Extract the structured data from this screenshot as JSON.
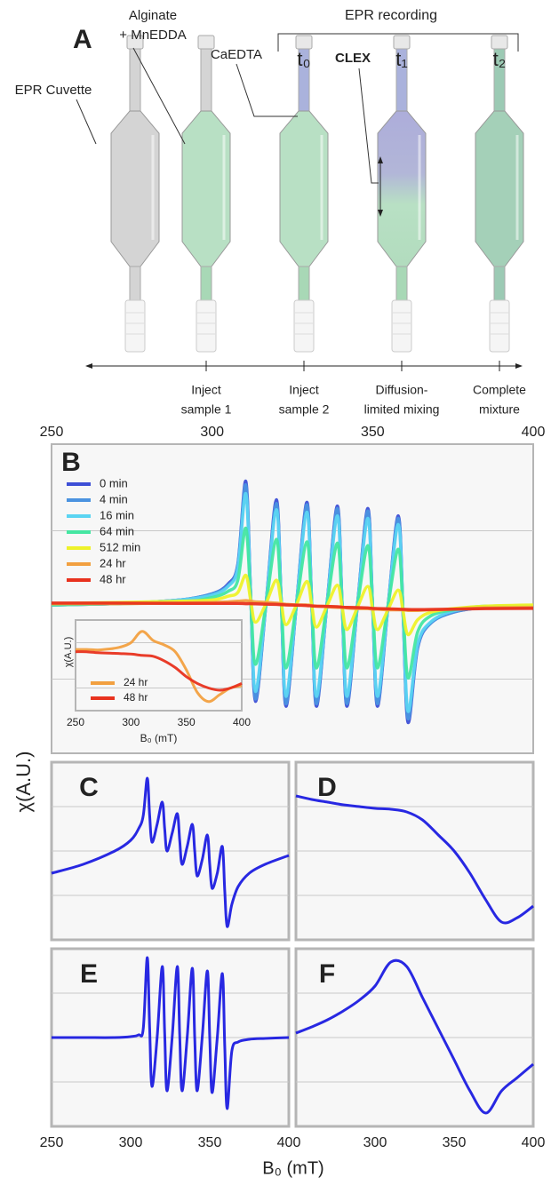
{
  "diagram": {
    "panel": "A",
    "cuvette_label": "EPR Cuvette",
    "sample_label": [
      "Alginate",
      "+ MnEDDA"
    ],
    "second_sample_label": "CaEDTA",
    "method_label": "CLEX",
    "recording_label": "EPR recording",
    "time_points": [
      "t₀",
      "t₁",
      "t₂"
    ],
    "steps": [
      [
        "Inject",
        "sample 1"
      ],
      [
        "Inject",
        "sample 2"
      ],
      [
        "Diffusion-",
        "limited mixing"
      ],
      [
        "Complete",
        "mixture"
      ]
    ]
  },
  "figure_labels": {
    "y": "χ(A.U.)",
    "x": "B₀ (mT)"
  },
  "chart_data": [
    {
      "type": "line",
      "panel": "B",
      "xlim": [
        250,
        400
      ],
      "xticks": [
        250,
        300,
        350,
        400
      ],
      "ylim": [
        -1.2,
        1.3
      ],
      "yticks": [
        -0.6,
        0.6
      ],
      "grid": true,
      "legend": "upper left",
      "x": [
        250,
        270,
        290,
        300,
        305,
        308,
        310.5,
        312,
        313.5,
        316.75,
        320,
        321.5,
        323,
        326.25,
        329.5,
        331,
        332.5,
        335.75,
        339,
        340.5,
        342,
        345.25,
        348.5,
        350,
        351.5,
        354.75,
        358,
        359.5,
        361,
        364,
        368,
        375,
        385,
        400
      ],
      "series": [
        {
          "name": "0 min",
          "color": "#3d4fd6",
          "values": [
            0,
            0.01,
            0.04,
            0.09,
            0.17,
            0.33,
            1.0,
            0.1,
            -0.78,
            0,
            0.85,
            0.05,
            -0.82,
            0,
            0.83,
            0.03,
            -0.82,
            0,
            0.8,
            0,
            -0.82,
            0,
            0.78,
            -0.02,
            -0.82,
            -0.02,
            0.72,
            -0.1,
            -0.95,
            -0.35,
            -0.15,
            -0.06,
            -0.02,
            -0.01
          ]
        },
        {
          "name": "4 min",
          "color": "#4b93e0",
          "values": [
            0,
            0.01,
            0.04,
            0.09,
            0.16,
            0.32,
            0.97,
            0.1,
            -0.76,
            0,
            0.82,
            0.05,
            -0.8,
            0,
            0.81,
            0.03,
            -0.8,
            0,
            0.78,
            0,
            -0.8,
            0,
            0.76,
            -0.02,
            -0.8,
            -0.02,
            0.7,
            -0.1,
            -0.92,
            -0.34,
            -0.15,
            -0.06,
            -0.02,
            -0.01
          ]
        },
        {
          "name": "16 min",
          "color": "#5ad4f2",
          "values": [
            0,
            0.01,
            0.04,
            0.08,
            0.15,
            0.3,
            0.9,
            0.09,
            -0.7,
            0,
            0.77,
            0.05,
            -0.74,
            0,
            0.75,
            0.03,
            -0.74,
            0,
            0.72,
            0,
            -0.74,
            0,
            0.7,
            -0.02,
            -0.74,
            -0.02,
            0.65,
            -0.09,
            -0.86,
            -0.32,
            -0.14,
            -0.05,
            -0.02,
            -0.01
          ]
        },
        {
          "name": "64 min",
          "color": "#45e6a2",
          "values": [
            0,
            0.01,
            0.02,
            0.06,
            0.11,
            0.2,
            0.62,
            0.06,
            -0.48,
            0,
            0.53,
            0.03,
            -0.51,
            0,
            0.51,
            0.02,
            -0.51,
            0,
            0.5,
            0,
            -0.51,
            0,
            0.48,
            -0.01,
            -0.51,
            -0.01,
            0.45,
            -0.06,
            -0.59,
            -0.22,
            -0.09,
            -0.04,
            -0.01,
            -0.01
          ]
        },
        {
          "name": "512 min",
          "color": "#eef22a",
          "values": [
            0.01,
            0.02,
            0.03,
            0.04,
            0.07,
            0.1,
            0.24,
            0.04,
            -0.14,
            0.01,
            0.2,
            0.02,
            -0.16,
            0,
            0.19,
            0,
            -0.18,
            -0.01,
            0.16,
            -0.02,
            -0.2,
            -0.02,
            0.15,
            -0.04,
            -0.2,
            -0.04,
            0.12,
            -0.06,
            -0.24,
            -0.12,
            -0.06,
            -0.03,
            -0.01,
            0
          ]
        },
        {
          "name": "24 hr",
          "color": "#f2a040",
          "values": [
            0.01,
            0.01,
            0.015,
            0.02,
            0.025,
            0.03,
            0.035,
            0.03,
            0.025,
            0.02,
            0.015,
            0.01,
            0.005,
            0,
            0,
            -0.005,
            -0.01,
            -0.015,
            -0.02,
            -0.02,
            -0.025,
            -0.03,
            -0.03,
            -0.035,
            -0.035,
            -0.04,
            -0.04,
            -0.04,
            -0.045,
            -0.045,
            -0.04,
            -0.035,
            -0.025,
            -0.02
          ]
        },
        {
          "name": "48 hr",
          "color": "#e8321e",
          "values": [
            0.015,
            0.015,
            0.012,
            0.012,
            0.012,
            0.012,
            0.01,
            0.01,
            0.008,
            0.006,
            0.004,
            0.002,
            0,
            -0.002,
            -0.005,
            -0.008,
            -0.01,
            -0.012,
            -0.015,
            -0.018,
            -0.02,
            -0.022,
            -0.025,
            -0.028,
            -0.03,
            -0.032,
            -0.035,
            -0.036,
            -0.037,
            -0.038,
            -0.037,
            -0.035,
            -0.03,
            -0.028
          ]
        }
      ]
    },
    {
      "type": "line",
      "xlabel": "B₀ (mT)",
      "ylabel": "χ(A.U.)",
      "xlim": [
        250,
        400
      ],
      "xticks": [
        250,
        300,
        350,
        400
      ],
      "ylim": [
        -1,
        1
      ],
      "yticks": [
        -0.5,
        0.5
      ],
      "grid": true,
      "legend": "lower left",
      "x": [
        250,
        260,
        270,
        280,
        290,
        300,
        310,
        320,
        330,
        340,
        350,
        360,
        370,
        380,
        390,
        400
      ],
      "series": [
        {
          "name": "24 hr",
          "color": "#f2a040",
          "values": [
            0.35,
            0.35,
            0.34,
            0.36,
            0.4,
            0.5,
            0.75,
            0.55,
            0.45,
            0.3,
            -0.1,
            -0.6,
            -0.8,
            -0.65,
            -0.5,
            -0.45
          ]
        },
        {
          "name": "48 hr",
          "color": "#e8321e",
          "values": [
            0.3,
            0.3,
            0.28,
            0.27,
            0.26,
            0.25,
            0.22,
            0.2,
            0.1,
            -0.05,
            -0.25,
            -0.4,
            -0.5,
            -0.55,
            -0.5,
            -0.4
          ]
        }
      ]
    },
    {
      "type": "line",
      "panel": "C",
      "xlim": [
        250,
        400
      ],
      "ylim": [
        -1,
        1
      ],
      "yticks": [
        -0.5,
        0,
        0.5
      ],
      "grid": true,
      "x": [
        250,
        270,
        290,
        300,
        305,
        308,
        310.5,
        312,
        313.5,
        316.75,
        320,
        321.5,
        323,
        326.25,
        329.5,
        331,
        332.5,
        335.75,
        339,
        340.5,
        342,
        345.25,
        348.5,
        350,
        351.5,
        354.75,
        358,
        359.5,
        361,
        364,
        368,
        375,
        385,
        400
      ],
      "series": [
        {
          "color": "#1c1ce0",
          "values": [
            -0.25,
            -0.15,
            0,
            0.12,
            0.25,
            0.4,
            0.82,
            0.4,
            0.1,
            0.3,
            0.55,
            0.25,
            0,
            0.2,
            0.42,
            0.12,
            -0.15,
            0.05,
            0.3,
            0,
            -0.28,
            -0.1,
            0.18,
            -0.15,
            -0.42,
            -0.25,
            0.05,
            -0.45,
            -0.85,
            -0.6,
            -0.4,
            -0.25,
            -0.15,
            -0.05
          ]
        }
      ]
    },
    {
      "type": "line",
      "panel": "D",
      "xlim": [
        250,
        400
      ],
      "ylim": [
        -1,
        1
      ],
      "yticks": [
        -0.5,
        0,
        0.5
      ],
      "grid": true,
      "x": [
        250,
        260,
        270,
        280,
        290,
        300,
        310,
        320,
        330,
        340,
        350,
        360,
        370,
        380,
        390,
        400
      ],
      "series": [
        {
          "color": "#1c1ce0",
          "values": [
            0.62,
            0.58,
            0.55,
            0.52,
            0.5,
            0.48,
            0.47,
            0.44,
            0.35,
            0.18,
            0,
            -0.25,
            -0.55,
            -0.8,
            -0.75,
            -0.62
          ]
        }
      ]
    },
    {
      "type": "line",
      "panel": "E",
      "xlim": [
        250,
        400
      ],
      "xticks": [
        250,
        300,
        350,
        400
      ],
      "ylim": [
        -1,
        1
      ],
      "yticks": [
        -0.5,
        0,
        0.5
      ],
      "grid": true,
      "x": [
        250,
        270,
        290,
        300,
        305,
        308,
        310.5,
        312,
        313.5,
        316.75,
        320,
        321.5,
        323,
        326.25,
        329.5,
        331,
        332.5,
        335.75,
        339,
        340.5,
        342,
        345.25,
        348.5,
        350,
        351.5,
        354.75,
        358,
        359.5,
        361,
        364,
        368,
        375,
        385,
        400
      ],
      "series": [
        {
          "color": "#1c1ce0",
          "values": [
            0,
            0,
            0,
            0.01,
            0.03,
            0.1,
            0.9,
            0.1,
            -0.55,
            0,
            0.8,
            0.05,
            -0.6,
            0,
            0.8,
            0.03,
            -0.6,
            0,
            0.78,
            0,
            -0.6,
            0,
            0.75,
            0,
            -0.62,
            0,
            0.72,
            -0.1,
            -0.8,
            -0.15,
            -0.05,
            -0.02,
            -0.01,
            0
          ]
        }
      ]
    },
    {
      "type": "line",
      "panel": "F",
      "xlim": [
        250,
        400
      ],
      "xticks": [
        300,
        350,
        400
      ],
      "ylim": [
        -1,
        1
      ],
      "yticks": [
        -0.5,
        0,
        0.5
      ],
      "grid": true,
      "x": [
        250,
        260,
        270,
        280,
        290,
        300,
        310,
        320,
        330,
        340,
        350,
        360,
        370,
        380,
        390,
        400
      ],
      "series": [
        {
          "color": "#1c1ce0",
          "values": [
            0.05,
            0.12,
            0.2,
            0.3,
            0.42,
            0.58,
            0.85,
            0.8,
            0.45,
            0.1,
            -0.25,
            -0.6,
            -0.85,
            -0.6,
            -0.45,
            -0.3
          ]
        }
      ]
    }
  ]
}
